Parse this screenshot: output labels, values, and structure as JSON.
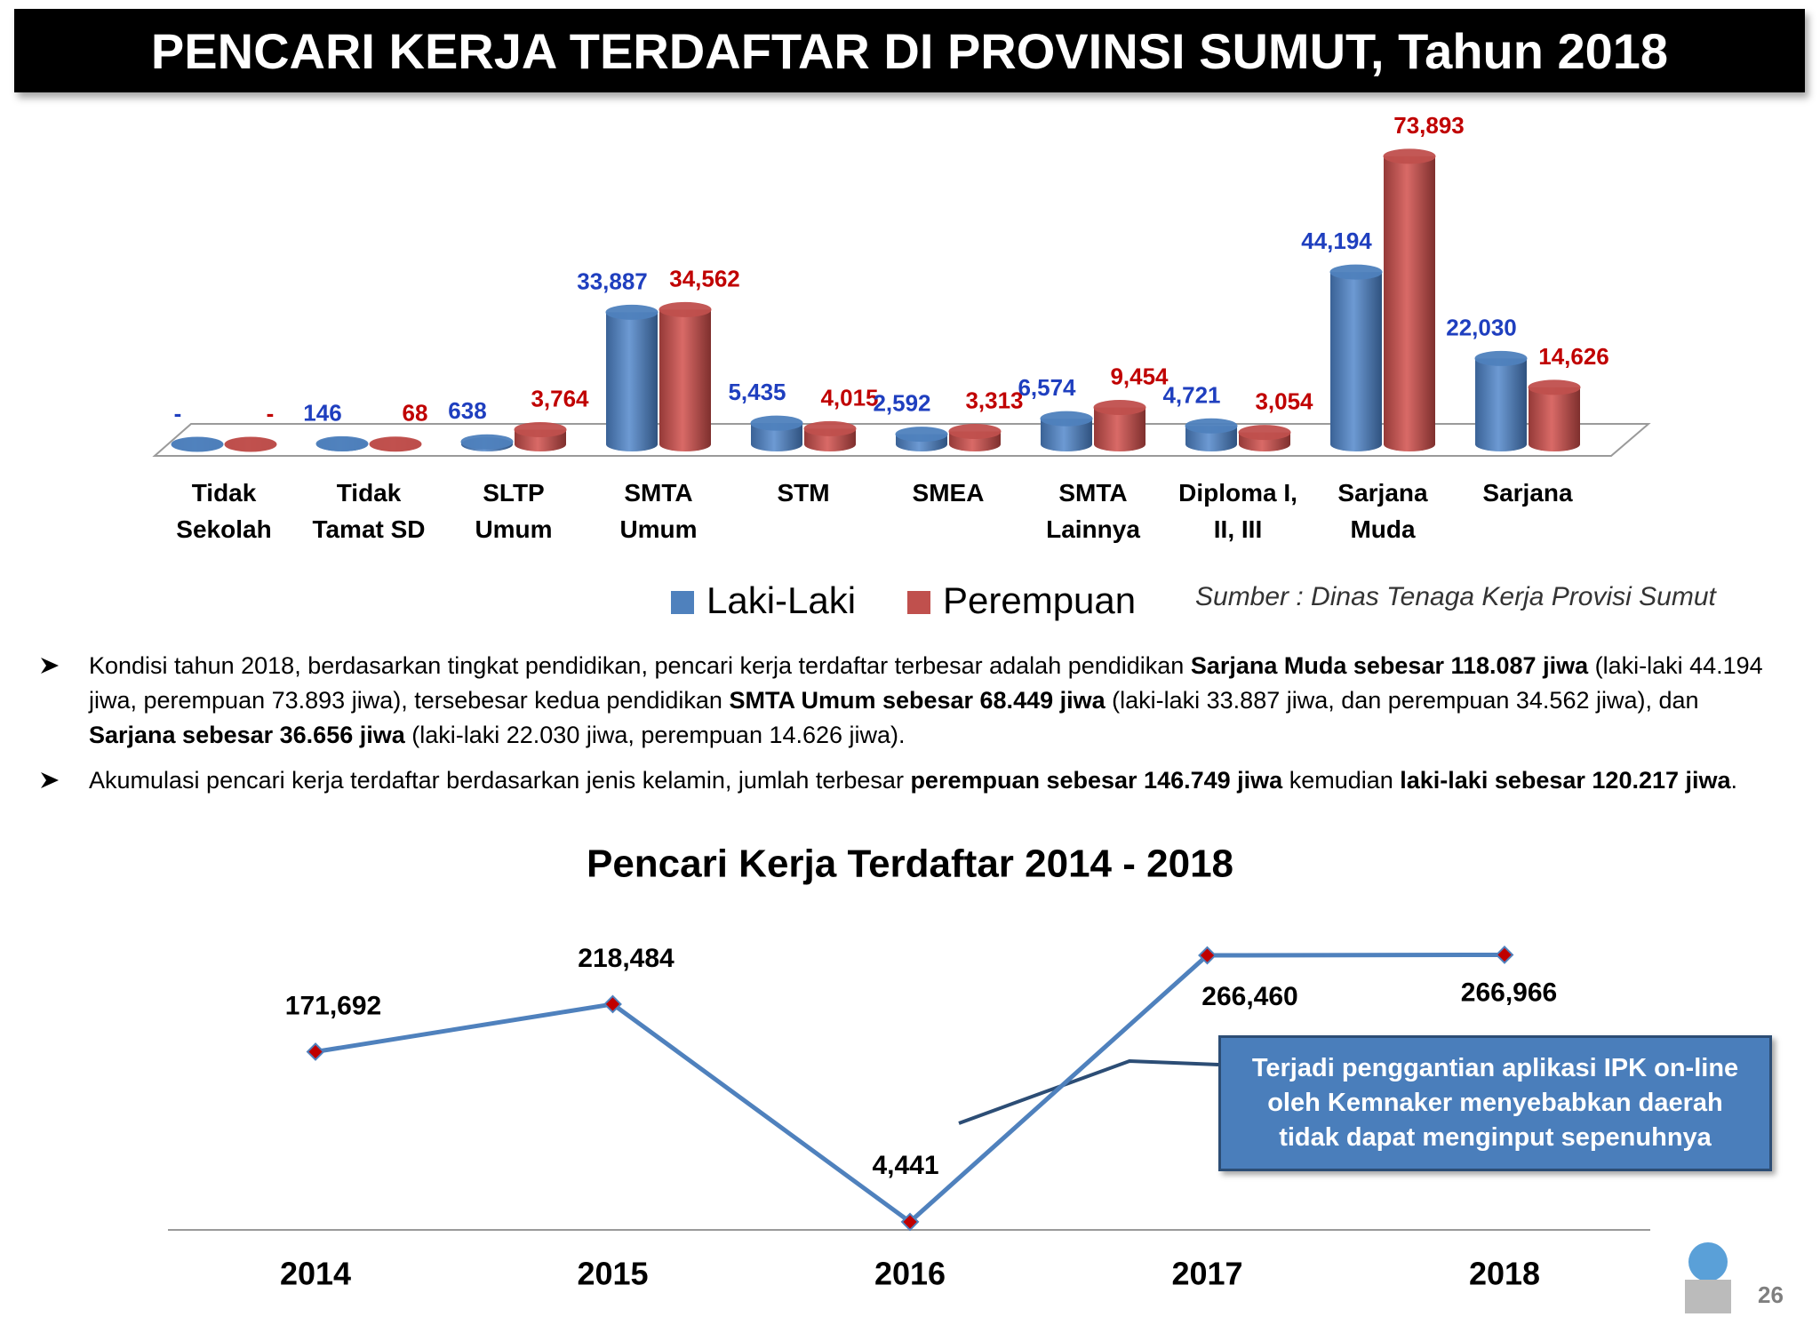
{
  "title": "PENCARI KERJA TERDAFTAR DI PROVINSI SUMUT, Tahun 2018",
  "chart_data": [
    {
      "type": "bar",
      "categories": [
        "Tidak\nSekolah",
        "Tidak\nTamat SD",
        "SLTP\nUmum",
        "SMTA\nUmum",
        "STM",
        "SMEA",
        "SMTA\nLainnya",
        "Diploma I,\nII, III",
        "Sarjana\nMuda",
        "Sarjana"
      ],
      "series": [
        {
          "name": "Laki-Laki",
          "color": "#4f81bd",
          "label_color": "#1f3fbf",
          "values": [
            0,
            146,
            638,
            33887,
            5435,
            2592,
            6574,
            4721,
            44194,
            22030
          ],
          "value_labels": [
            "-",
            "146",
            "638",
            "33,887",
            "5,435",
            "2,592",
            "6,574",
            "4,721",
            "44,194",
            "22,030"
          ]
        },
        {
          "name": "Perempuan",
          "color": "#c0504d",
          "label_color": "#c00000",
          "values": [
            0,
            68,
            3764,
            34562,
            4015,
            3313,
            9454,
            3054,
            73893,
            14626
          ],
          "value_labels": [
            "-",
            "68",
            "3,764",
            "34,562",
            "4,015",
            "3,313",
            "9,454",
            "3,054",
            "73,893",
            "14,626"
          ]
        }
      ],
      "ylim": [
        0,
        75000
      ],
      "source": "Sumber : Dinas Tenaga Kerja Provisi Sumut"
    },
    {
      "type": "line",
      "title": "Pencari Kerja Terdaftar 2014 - 2018",
      "categories": [
        "2014",
        "2015",
        "2016",
        "2017",
        "2018"
      ],
      "values": [
        171692,
        218484,
        4441,
        266460,
        266966
      ],
      "value_labels": [
        "171,692",
        "218,484",
        "4,441",
        "266,460",
        "266,966"
      ],
      "color": "#4f81bd",
      "marker_color": "#c00000",
      "ylim": [
        0,
        270000
      ],
      "annotation": "Terjadi penggantian aplikasi IPK on-line\noleh Kemnaker menyebabkan daerah\ntidak dapat menginput sepenuhnya"
    }
  ],
  "bullets": [
    [
      {
        "text": "Kondisi tahun 2018, berdasarkan tingkat pendidikan, pencari kerja terdaftar terbesar adalah pendidikan ",
        "bold": false
      },
      {
        "text": "Sarjana Muda sebesar 118.087 jiwa",
        "bold": true
      },
      {
        "text": " (laki-laki 44.194 jiwa, perempuan 73.893 jiwa), tersebesar kedua pendidikan ",
        "bold": false
      },
      {
        "text": "SMTA Umum sebesar 68.449 jiwa",
        "bold": true
      },
      {
        "text": " (laki-laki 33.887 jiwa, dan perempuan 34.562 jiwa), dan ",
        "bold": false
      },
      {
        "text": "Sarjana sebesar 36.656 jiwa",
        "bold": true
      },
      {
        "text": " (laki-laki 22.030 jiwa, perempuan 14.626 jiwa).",
        "bold": false
      }
    ],
    [
      {
        "text": "Akumulasi pencari kerja terdaftar berdasarkan jenis kelamin, jumlah terbesar ",
        "bold": false
      },
      {
        "text": "perempuan sebesar 146.749 jiwa",
        "bold": true
      },
      {
        "text": " kemudian ",
        "bold": false
      },
      {
        "text": "laki-laki sebesar 120.217 jiwa",
        "bold": true
      },
      {
        "text": ".",
        "bold": false
      }
    ]
  ],
  "page_number": "26"
}
